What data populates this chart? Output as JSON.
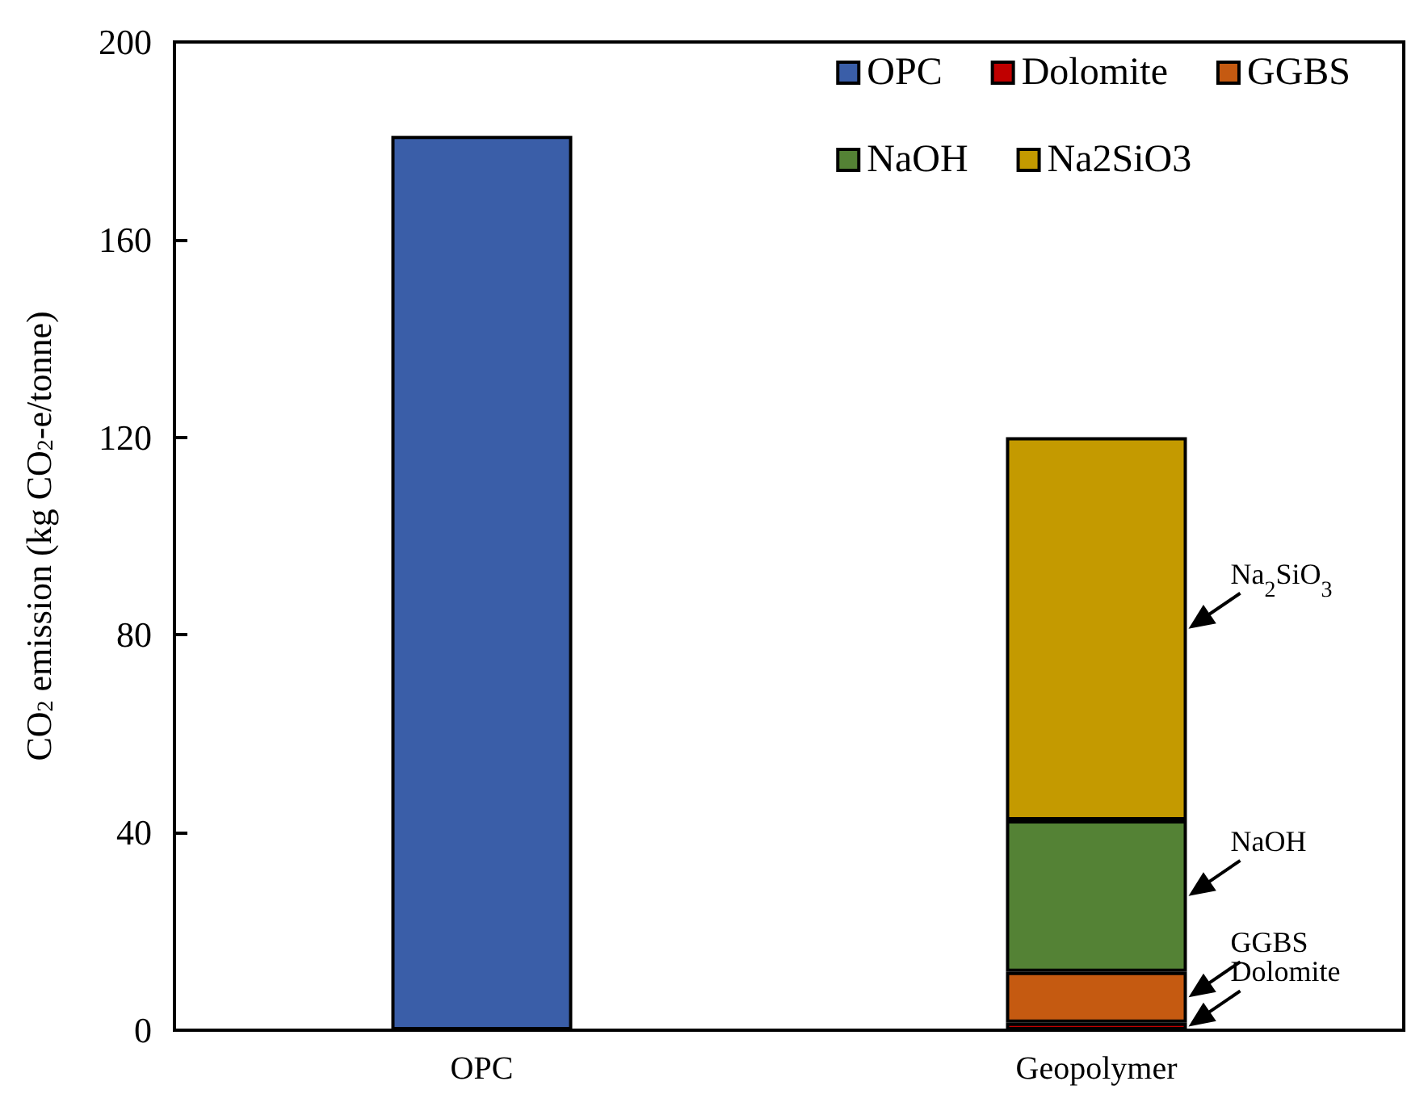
{
  "chart_data": {
    "type": "bar",
    "ylabel": "CO$_{2}$ emission (kg CO$_{2}$-e/tonne)",
    "categories": [
      "OPC",
      "Geopolymer"
    ],
    "stacked": true,
    "series": [
      {
        "name": "OPC",
        "color": "#3a5ea8",
        "values": [
          181,
          null
        ]
      },
      {
        "name": "Dolomite",
        "color": "#c00000",
        "values": [
          null,
          1.5
        ]
      },
      {
        "name": "GGBS",
        "color": "#c55a11",
        "values": [
          null,
          10.3
        ]
      },
      {
        "name": "NaOH",
        "color": "#548235",
        "values": [
          null,
          30.7
        ]
      },
      {
        "name": "Na2SiO3",
        "color": "#c49a00",
        "values": [
          null,
          77.5
        ]
      }
    ],
    "annotations": [
      "Na$_{2}$SiO$_{3}$",
      "NaOH",
      "GGBS",
      "Dolomite"
    ],
    "ylim": [
      0,
      200
    ],
    "yticks": [
      0,
      40,
      80,
      120,
      160,
      200
    ],
    "grid": false,
    "legend": "top right"
  }
}
